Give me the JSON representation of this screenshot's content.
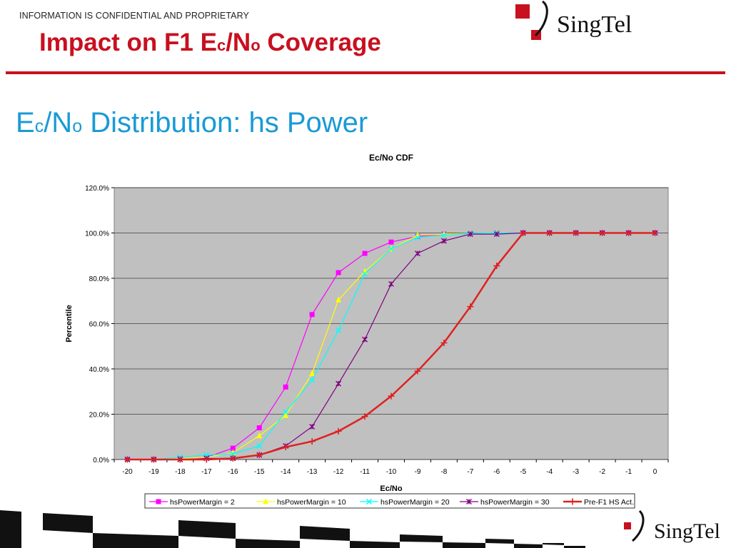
{
  "header": {
    "confidential": "INFORMATION IS CONFIDENTIAL AND PROPRIETARY",
    "title_parts": [
      "Impact on F1 E",
      "c",
      "/N",
      "o",
      " Coverage"
    ],
    "logo_text": "SingTel"
  },
  "section": {
    "title_parts": [
      "E",
      "c",
      "/N",
      "o",
      " Distribution: hs Power"
    ]
  },
  "footer": {
    "logo_text": "SingTel"
  },
  "colors": {
    "brand_red": "#c8101f",
    "section_blue": "#1a9ad6",
    "plot_bg": "#c0c0c0"
  },
  "chart_data": {
    "type": "line",
    "title": "Ec/No CDF",
    "xlabel": "Ec/No",
    "ylabel": "Percentile",
    "x": [
      -20,
      -19,
      -18,
      -17,
      -16,
      -15,
      -14,
      -13,
      -12,
      -11,
      -10,
      -9,
      -8,
      -7,
      -6,
      -5,
      -4,
      -3,
      -2,
      -1,
      0
    ],
    "x_tick_labels": [
      "-20",
      "-19",
      "-18",
      "-17",
      "-16",
      "-15",
      "-14",
      "-13",
      "-12",
      "-11",
      "-10",
      "-9",
      "-8",
      "-7",
      "-6",
      "-5",
      "-4",
      "-3",
      "-2",
      "-1",
      "0"
    ],
    "ylim": [
      0,
      120
    ],
    "y_ticks": [
      0,
      20,
      40,
      60,
      80,
      100,
      120
    ],
    "y_tick_labels": [
      "0.0%",
      "20.0%",
      "40.0%",
      "60.0%",
      "80.0%",
      "100.0%",
      "120.0%"
    ],
    "grid": "horizontal",
    "legend_position": "bottom",
    "series": [
      {
        "name": "hsPowerMargin = 2",
        "color": "#ff00ff",
        "marker": "square",
        "values": [
          0,
          0,
          0.5,
          1,
          5,
          14,
          32,
          64,
          82.5,
          91,
          96,
          98.5,
          99.5,
          99.8,
          100,
          100,
          100,
          100,
          100,
          100,
          100
        ]
      },
      {
        "name": "hsPowerMargin = 10",
        "color": "#ffff00",
        "marker": "triangle",
        "values": [
          0,
          0,
          0.5,
          1,
          3,
          10.5,
          19.5,
          38,
          70.5,
          83,
          93,
          99,
          99.5,
          99.8,
          100,
          100,
          100,
          100,
          100,
          100,
          100
        ]
      },
      {
        "name": "hsPowerMargin = 20",
        "color": "#00ffff",
        "marker": "x",
        "values": [
          0,
          0,
          1,
          2,
          2.5,
          6,
          21,
          35,
          57,
          82,
          93,
          98,
          99,
          99.8,
          100,
          100,
          100,
          100,
          100,
          100,
          100
        ]
      },
      {
        "name": "hsPowerMargin = 30",
        "color": "#800080",
        "marker": "star",
        "values": [
          0,
          0,
          0,
          0.5,
          0.5,
          2,
          6,
          14.5,
          33.5,
          53,
          77.5,
          91,
          96.5,
          99.5,
          99.5,
          100,
          100,
          100,
          100,
          100,
          100
        ]
      },
      {
        "name": "Pre-F1 HS Act.",
        "color": "#e02020",
        "marker": "plus",
        "thick": true,
        "values": [
          0,
          0,
          0,
          0,
          0.5,
          2,
          5.5,
          8,
          12.5,
          19,
          28,
          39,
          51.5,
          67.5,
          85.5,
          100,
          100,
          100,
          100,
          100,
          100
        ]
      }
    ]
  }
}
